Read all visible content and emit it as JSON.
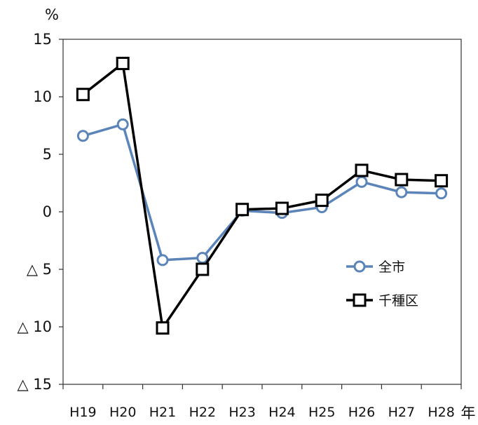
{
  "chart_data": {
    "type": "line",
    "ylabel": "%",
    "xunit": "年",
    "categories": [
      "H19",
      "H20",
      "H21",
      "H22",
      "H23",
      "H24",
      "H25",
      "H26",
      "H27",
      "H28"
    ],
    "ylim": [
      -15,
      15
    ],
    "yticks": [
      {
        "value": 15,
        "label": "15"
      },
      {
        "value": 10,
        "label": "10"
      },
      {
        "value": 5,
        "label": "5"
      },
      {
        "value": 0,
        "label": "0"
      },
      {
        "value": -5,
        "label": "△ 5"
      },
      {
        "value": -10,
        "label": "△ 10"
      },
      {
        "value": -15,
        "label": "△ 15"
      }
    ],
    "grid": false,
    "legend_position": "right",
    "series": [
      {
        "name": "全市",
        "color": "#5b84b8",
        "marker": "circle",
        "values": [
          6.6,
          7.6,
          -4.2,
          -4.0,
          0.1,
          -0.1,
          0.4,
          2.6,
          1.7,
          1.6
        ]
      },
      {
        "name": "千種区",
        "color": "#000000",
        "marker": "square",
        "values": [
          10.2,
          12.9,
          -10.1,
          -5.0,
          0.2,
          0.3,
          1.0,
          3.6,
          2.8,
          2.7
        ]
      }
    ]
  }
}
